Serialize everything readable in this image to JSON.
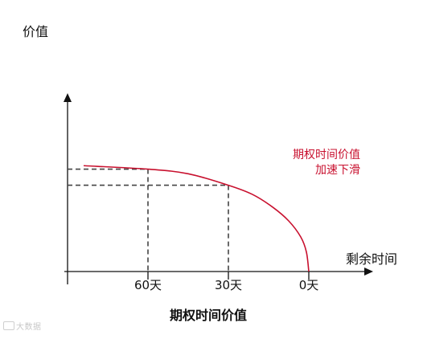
{
  "chart_data": {
    "type": "line",
    "title": "期权时间价值",
    "ylabel": "价值",
    "xlabel": "剩余时间",
    "categories": [
      "60天",
      "30天",
      "0天"
    ],
    "series": [
      {
        "name": "期权时间价值加速下滑",
        "label_lines": [
          "期权时间价值",
          "加速下滑"
        ],
        "color": "#c8102e",
        "points": [
          {
            "x": 0.2,
            "y": 0.92
          },
          {
            "x": 1.0,
            "y": 0.89
          },
          {
            "x": 1.5,
            "y": 0.85
          },
          {
            "x": 2.0,
            "y": 0.75
          },
          {
            "x": 2.3,
            "y": 0.67
          },
          {
            "x": 2.55,
            "y": 0.56
          },
          {
            "x": 2.75,
            "y": 0.44
          },
          {
            "x": 2.9,
            "y": 0.3
          },
          {
            "x": 2.97,
            "y": 0.17
          },
          {
            "x": 3.0,
            "y": 0.0
          }
        ]
      }
    ],
    "reference_points": [
      {
        "category": "60天",
        "x": 1.0,
        "y": 0.89
      },
      {
        "category": "30天",
        "x": 2.0,
        "y": 0.75
      }
    ],
    "xlim": [
      -0.04,
      3.8
    ],
    "ylim": [
      0,
      1.55
    ],
    "grid": false,
    "legend": "none",
    "colors": {
      "axis": "#111111",
      "curve": "#c8102e",
      "dash": "#444444",
      "label": "#c8102e"
    }
  },
  "watermark": "大数据"
}
